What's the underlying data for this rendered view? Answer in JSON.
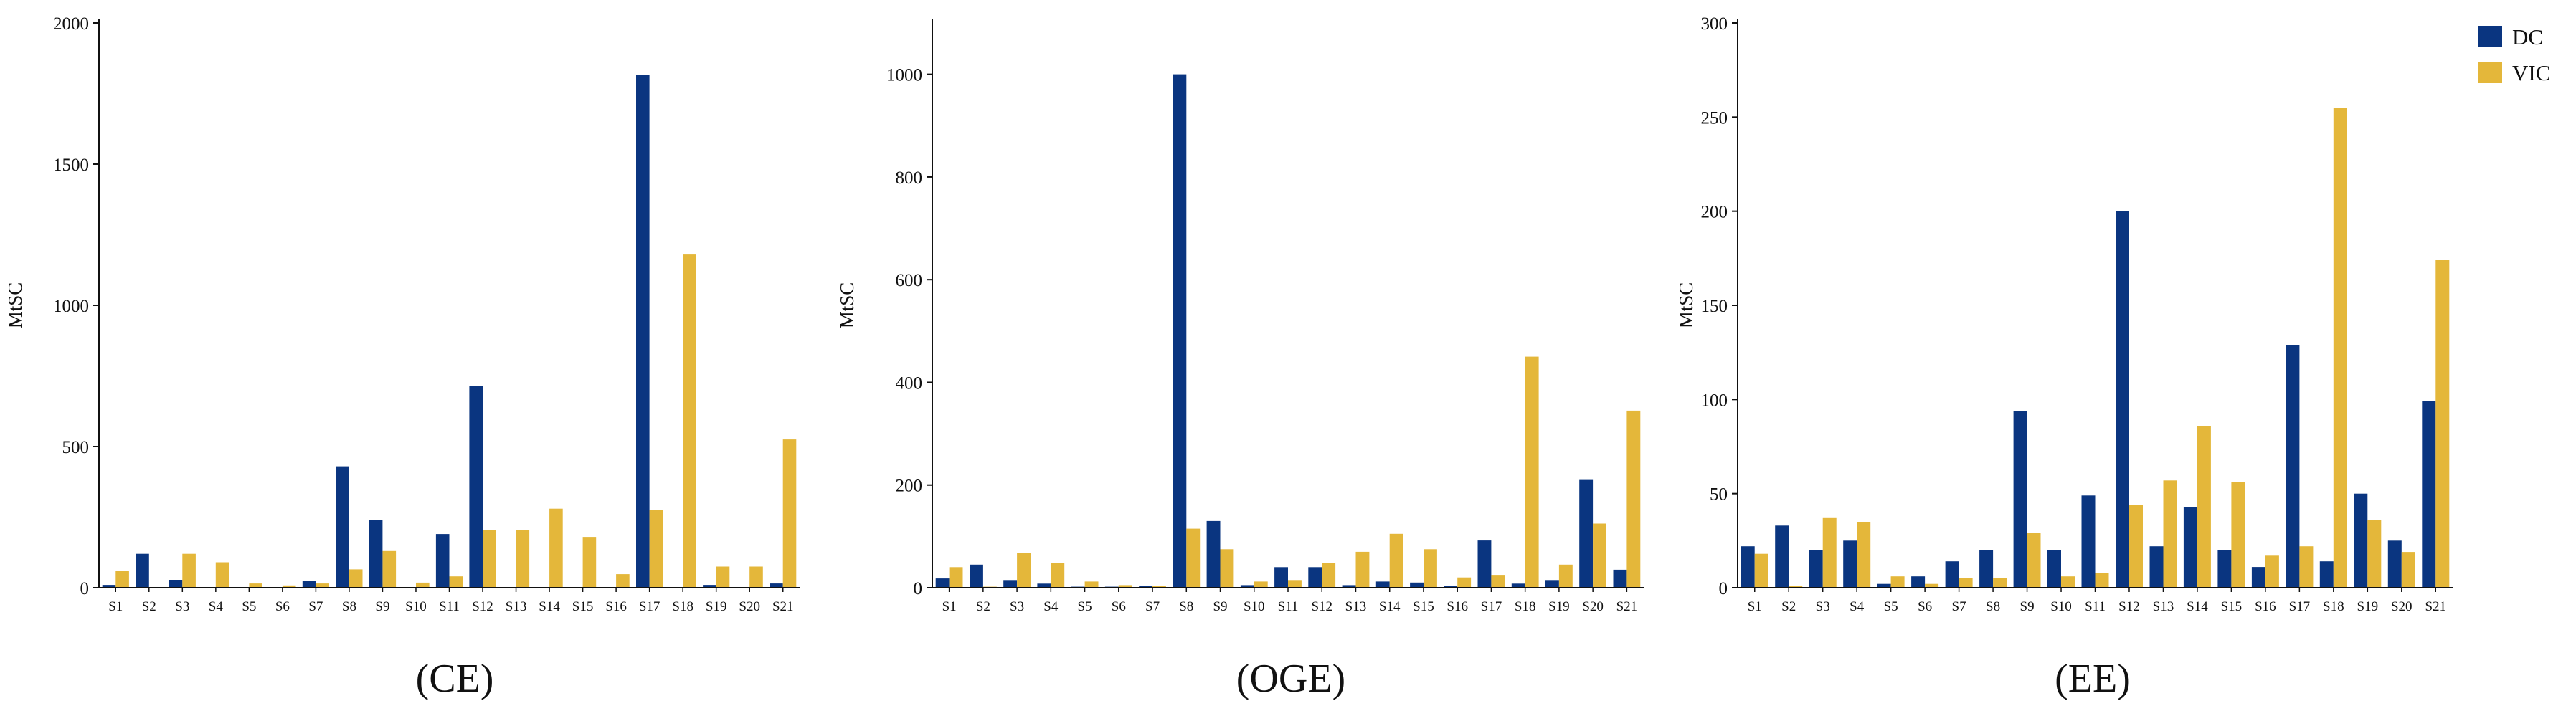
{
  "colors": {
    "DC": "#0a3580",
    "VIC": "#e4b73a",
    "axis": "#111111"
  },
  "legend": {
    "position": "top-right",
    "items": [
      {
        "name": "DC",
        "color": "#0a3580"
      },
      {
        "name": "VIC",
        "color": "#e4b73a"
      }
    ]
  },
  "chart_data": [
    {
      "type": "bar",
      "title": "(CE)",
      "xlabel": "",
      "ylabel": "MtSC",
      "ylim": [
        0,
        2000
      ],
      "yticks": [
        0,
        500,
        1000,
        1500,
        2000
      ],
      "grid": false,
      "categories": [
        "S1",
        "S2",
        "S3",
        "S4",
        "S5",
        "S6",
        "S7",
        "S8",
        "S9",
        "S10",
        "S11",
        "S12",
        "S13",
        "S14",
        "S15",
        "S16",
        "S17",
        "S18",
        "S19",
        "S20",
        "S21"
      ],
      "series": [
        {
          "name": "DC",
          "values": [
            10,
            120,
            28,
            0,
            0,
            0,
            25,
            430,
            240,
            0,
            190,
            715,
            0,
            0,
            0,
            0,
            1815,
            0,
            10,
            0,
            15
          ]
        },
        {
          "name": "VIC",
          "values": [
            60,
            0,
            120,
            90,
            15,
            8,
            15,
            65,
            130,
            18,
            40,
            205,
            205,
            280,
            180,
            48,
            275,
            1180,
            75,
            75,
            525
          ]
        }
      ]
    },
    {
      "type": "bar",
      "title": "(OGE)",
      "xlabel": "",
      "ylabel": "MtSC",
      "ylim": [
        0,
        1100
      ],
      "yticks": [
        0,
        200,
        400,
        600,
        800,
        1000
      ],
      "grid": false,
      "categories": [
        "S1",
        "S2",
        "S3",
        "S4",
        "S5",
        "S6",
        "S7",
        "S8",
        "S9",
        "S10",
        "S11",
        "S12",
        "S13",
        "S14",
        "S15",
        "S16",
        "S17",
        "S18",
        "S19",
        "S20",
        "S21"
      ],
      "series": [
        {
          "name": "DC",
          "values": [
            18,
            45,
            15,
            8,
            2,
            2,
            3,
            1000,
            130,
            5,
            40,
            40,
            5,
            12,
            10,
            3,
            92,
            8,
            15,
            210,
            35
          ]
        },
        {
          "name": "VIC",
          "values": [
            40,
            2,
            68,
            48,
            12,
            5,
            3,
            115,
            75,
            12,
            15,
            48,
            70,
            105,
            75,
            20,
            25,
            450,
            45,
            125,
            345
          ]
        }
      ]
    },
    {
      "type": "bar",
      "title": "(EE)",
      "xlabel": "",
      "ylabel": "MtSC",
      "ylim": [
        0,
        300
      ],
      "yticks": [
        0,
        50,
        100,
        150,
        200,
        250,
        300
      ],
      "grid": false,
      "categories": [
        "S1",
        "S2",
        "S3",
        "S4",
        "S5",
        "S6",
        "S7",
        "S8",
        "S9",
        "S10",
        "S11",
        "S12",
        "S13",
        "S14",
        "S15",
        "S16",
        "S17",
        "S18",
        "S19",
        "S20",
        "S21"
      ],
      "series": [
        {
          "name": "DC",
          "values": [
            22,
            33,
            20,
            25,
            2,
            6,
            14,
            20,
            94,
            20,
            49,
            200,
            22,
            43,
            20,
            11,
            129,
            14,
            50,
            25,
            99
          ]
        },
        {
          "name": "VIC",
          "values": [
            18,
            1,
            37,
            35,
            6,
            2,
            5,
            5,
            29,
            6,
            8,
            44,
            57,
            86,
            56,
            17,
            22,
            255,
            36,
            19,
            174
          ]
        }
      ]
    }
  ]
}
